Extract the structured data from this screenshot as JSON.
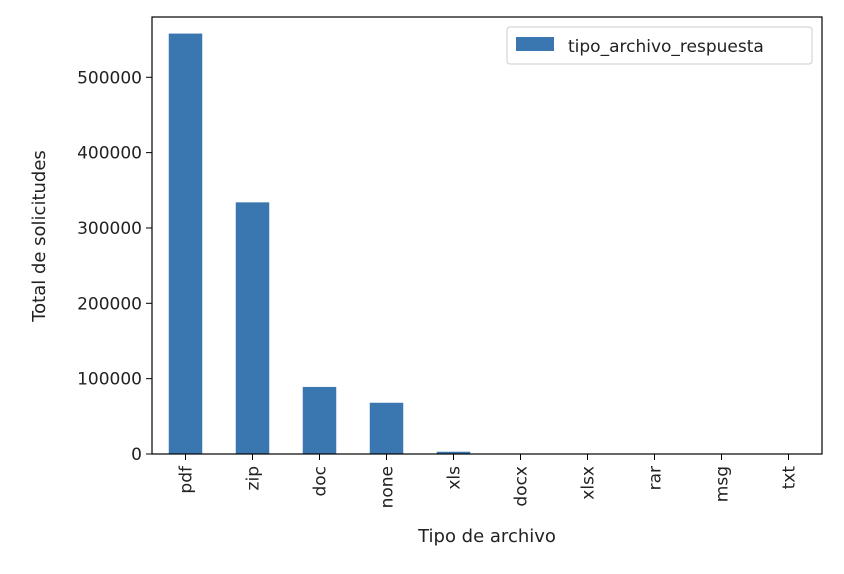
{
  "chart_data": {
    "type": "bar",
    "categories": [
      "pdf",
      "zip",
      "doc",
      "none",
      "xls",
      "docx",
      "xlsx",
      "rar",
      "msg",
      "txt"
    ],
    "series": [
      {
        "name": "tipo_archivo_respuesta",
        "values": [
          558000,
          334000,
          89000,
          68000,
          3000,
          300,
          200,
          150,
          100,
          80
        ]
      }
    ],
    "xlabel": "Tipo de archivo",
    "ylabel": "Total de solicitudes",
    "ylim": [
      0,
      580000
    ],
    "yticks": [
      0,
      100000,
      200000,
      300000,
      400000,
      500000
    ],
    "ytick_labels": [
      "0",
      "100000",
      "200000",
      "300000",
      "400000",
      "500000"
    ],
    "grid": false,
    "legend_position": "top-right",
    "bar_color": "#3a76af"
  }
}
